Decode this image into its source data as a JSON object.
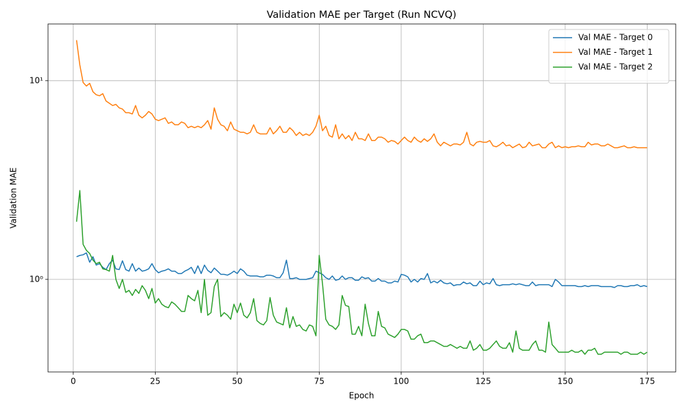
{
  "chart_data": {
    "type": "line",
    "title": "Validation MAE per Target (Run NCVQ)",
    "x_label": "Epoch",
    "y_label": "Validation MAE",
    "log_y": true,
    "grid": true,
    "legend": "upper right",
    "xlim": [
      -7.7,
      183.7
    ],
    "ylim": [
      0.342,
      19.3
    ],
    "xticks": [
      0,
      25,
      50,
      75,
      100,
      125,
      150,
      175
    ],
    "yticks": [
      {
        "value": 1,
        "label": "10⁰"
      },
      {
        "value": 10,
        "label": "10¹"
      }
    ],
    "x": [
      1,
      2,
      3,
      4,
      5,
      6,
      7,
      8,
      9,
      10,
      11,
      12,
      13,
      14,
      15,
      16,
      17,
      18,
      19,
      20,
      21,
      22,
      23,
      24,
      25,
      26,
      27,
      28,
      29,
      30,
      31,
      32,
      33,
      34,
      35,
      36,
      37,
      38,
      39,
      40,
      41,
      42,
      43,
      44,
      45,
      46,
      47,
      48,
      49,
      50,
      51,
      52,
      53,
      54,
      55,
      56,
      57,
      58,
      59,
      60,
      61,
      62,
      63,
      64,
      65,
      66,
      67,
      68,
      69,
      70,
      71,
      72,
      73,
      74,
      75,
      76,
      77,
      78,
      79,
      80,
      81,
      82,
      83,
      84,
      85,
      86,
      87,
      88,
      89,
      90,
      91,
      92,
      93,
      94,
      95,
      96,
      97,
      98,
      99,
      100,
      101,
      102,
      103,
      104,
      105,
      106,
      107,
      108,
      109,
      110,
      111,
      112,
      113,
      114,
      115,
      116,
      117,
      118,
      119,
      120,
      121,
      122,
      123,
      124,
      125,
      126,
      127,
      128,
      129,
      130,
      131,
      132,
      133,
      134,
      135,
      136,
      137,
      138,
      139,
      140,
      141,
      142,
      143,
      144,
      145,
      146,
      147,
      148,
      149,
      150,
      151,
      152,
      153,
      154,
      155,
      156,
      157,
      158,
      159,
      160,
      161,
      162,
      163,
      164,
      165,
      166,
      167,
      168,
      169,
      170,
      171,
      172,
      173,
      174,
      175
    ],
    "series": [
      {
        "name": "Val MAE - Target 0",
        "color": "#1f77b4",
        "values": [
          1.3,
          1.32,
          1.33,
          1.36,
          1.22,
          1.3,
          1.18,
          1.2,
          1.15,
          1.12,
          1.2,
          1.25,
          1.13,
          1.12,
          1.24,
          1.12,
          1.1,
          1.2,
          1.1,
          1.14,
          1.1,
          1.11,
          1.13,
          1.2,
          1.12,
          1.08,
          1.1,
          1.11,
          1.13,
          1.1,
          1.1,
          1.07,
          1.07,
          1.1,
          1.12,
          1.15,
          1.07,
          1.17,
          1.07,
          1.18,
          1.11,
          1.08,
          1.14,
          1.1,
          1.06,
          1.06,
          1.05,
          1.07,
          1.1,
          1.07,
          1.13,
          1.1,
          1.05,
          1.04,
          1.04,
          1.04,
          1.03,
          1.03,
          1.05,
          1.05,
          1.04,
          1.02,
          1.02,
          1.08,
          1.25,
          1.01,
          1.01,
          1.02,
          1.0,
          1.0,
          1.0,
          1.01,
          1.02,
          1.1,
          1.08,
          1.06,
          1.02,
          1.0,
          1.04,
          0.99,
          1.0,
          1.04,
          1.0,
          1.02,
          1.02,
          0.99,
          0.99,
          1.03,
          1.01,
          1.02,
          0.98,
          0.98,
          1.01,
          0.98,
          0.98,
          0.96,
          0.96,
          0.98,
          0.97,
          1.06,
          1.05,
          1.03,
          0.97,
          1.0,
          0.97,
          1.01,
          1.0,
          1.07,
          0.96,
          0.98,
          0.96,
          0.99,
          0.96,
          0.95,
          0.96,
          0.93,
          0.94,
          0.94,
          0.97,
          0.95,
          0.96,
          0.93,
          0.93,
          0.98,
          0.94,
          0.96,
          0.95,
          1.01,
          0.94,
          0.93,
          0.94,
          0.94,
          0.94,
          0.95,
          0.94,
          0.95,
          0.94,
          0.93,
          0.93,
          0.97,
          0.93,
          0.94,
          0.94,
          0.94,
          0.94,
          0.92,
          1.0,
          0.97,
          0.93,
          0.93,
          0.93,
          0.93,
          0.93,
          0.92,
          0.92,
          0.93,
          0.92,
          0.93,
          0.93,
          0.93,
          0.92,
          0.92,
          0.92,
          0.92,
          0.91,
          0.93,
          0.93,
          0.92,
          0.92,
          0.93,
          0.93,
          0.94,
          0.92,
          0.93,
          0.92
        ]
      },
      {
        "name": "Val MAE - Target 1",
        "color": "#ff7f0e",
        "values": [
          16,
          12,
          9.8,
          9.4,
          9.7,
          8.8,
          8.5,
          8.4,
          8.6,
          7.9,
          7.7,
          7.5,
          7.6,
          7.3,
          7.2,
          6.9,
          6.9,
          6.8,
          7.5,
          6.7,
          6.5,
          6.7,
          7.0,
          6.8,
          6.4,
          6.3,
          6.4,
          6.5,
          6.1,
          6.2,
          6.0,
          6.0,
          6.2,
          6.1,
          5.8,
          5.9,
          5.8,
          5.9,
          5.8,
          6.0,
          6.3,
          5.7,
          7.3,
          6.4,
          6.0,
          5.9,
          5.6,
          6.2,
          5.7,
          5.6,
          5.5,
          5.5,
          5.4,
          5.5,
          6.0,
          5.5,
          5.4,
          5.4,
          5.4,
          5.8,
          5.4,
          5.6,
          5.9,
          5.5,
          5.5,
          5.8,
          5.6,
          5.3,
          5.5,
          5.3,
          5.4,
          5.3,
          5.5,
          5.9,
          6.7,
          5.6,
          5.9,
          5.3,
          5.2,
          6.0,
          5.1,
          5.4,
          5.1,
          5.3,
          5.0,
          5.5,
          5.1,
          5.1,
          5.0,
          5.4,
          5.0,
          5.0,
          5.2,
          5.2,
          5.1,
          4.9,
          5.0,
          4.95,
          4.8,
          5.0,
          5.2,
          5.0,
          4.9,
          5.2,
          5.0,
          4.9,
          5.1,
          4.95,
          5.1,
          5.4,
          4.9,
          4.7,
          4.9,
          4.8,
          4.7,
          4.8,
          4.8,
          4.75,
          4.9,
          5.5,
          4.8,
          4.7,
          4.9,
          4.95,
          4.9,
          4.9,
          5.0,
          4.7,
          4.65,
          4.75,
          4.9,
          4.7,
          4.75,
          4.6,
          4.7,
          4.8,
          4.6,
          4.65,
          4.9,
          4.7,
          4.75,
          4.8,
          4.6,
          4.6,
          4.8,
          4.9,
          4.6,
          4.7,
          4.6,
          4.65,
          4.6,
          4.65,
          4.65,
          4.7,
          4.65,
          4.65,
          4.9,
          4.75,
          4.8,
          4.8,
          4.7,
          4.7,
          4.8,
          4.7,
          4.6,
          4.6,
          4.65,
          4.7,
          4.6,
          4.6,
          4.65,
          4.6,
          4.6,
          4.6,
          4.6
        ]
      },
      {
        "name": "Val MAE - Target 2",
        "color": "#2ca02c",
        "values": [
          1.95,
          2.8,
          1.5,
          1.4,
          1.35,
          1.25,
          1.2,
          1.22,
          1.13,
          1.12,
          1.1,
          1.32,
          1.0,
          0.9,
          1.0,
          0.86,
          0.88,
          0.83,
          0.89,
          0.85,
          0.93,
          0.88,
          0.8,
          0.9,
          0.76,
          0.8,
          0.75,
          0.73,
          0.72,
          0.77,
          0.75,
          0.72,
          0.69,
          0.69,
          0.83,
          0.8,
          0.78,
          0.88,
          0.68,
          1.0,
          0.66,
          0.68,
          0.92,
          1.0,
          0.65,
          0.68,
          0.66,
          0.63,
          0.75,
          0.68,
          0.76,
          0.66,
          0.64,
          0.68,
          0.8,
          0.62,
          0.6,
          0.59,
          0.62,
          0.81,
          0.66,
          0.61,
          0.6,
          0.59,
          0.72,
          0.57,
          0.65,
          0.58,
          0.59,
          0.56,
          0.55,
          0.59,
          0.58,
          0.52,
          1.32,
          0.95,
          0.63,
          0.59,
          0.58,
          0.56,
          0.59,
          0.83,
          0.74,
          0.73,
          0.53,
          0.53,
          0.58,
          0.52,
          0.75,
          0.6,
          0.52,
          0.52,
          0.69,
          0.58,
          0.57,
          0.53,
          0.52,
          0.51,
          0.53,
          0.56,
          0.56,
          0.55,
          0.5,
          0.5,
          0.52,
          0.53,
          0.48,
          0.48,
          0.49,
          0.49,
          0.48,
          0.47,
          0.46,
          0.46,
          0.47,
          0.46,
          0.45,
          0.46,
          0.45,
          0.45,
          0.49,
          0.44,
          0.45,
          0.47,
          0.44,
          0.44,
          0.45,
          0.47,
          0.49,
          0.46,
          0.45,
          0.45,
          0.48,
          0.43,
          0.55,
          0.45,
          0.44,
          0.44,
          0.44,
          0.47,
          0.49,
          0.44,
          0.44,
          0.43,
          0.61,
          0.47,
          0.45,
          0.43,
          0.43,
          0.43,
          0.43,
          0.44,
          0.43,
          0.43,
          0.44,
          0.42,
          0.44,
          0.44,
          0.45,
          0.42,
          0.42,
          0.43,
          0.43,
          0.43,
          0.43,
          0.43,
          0.42,
          0.43,
          0.43,
          0.42,
          0.42,
          0.42,
          0.43,
          0.42,
          0.43
        ]
      }
    ]
  }
}
